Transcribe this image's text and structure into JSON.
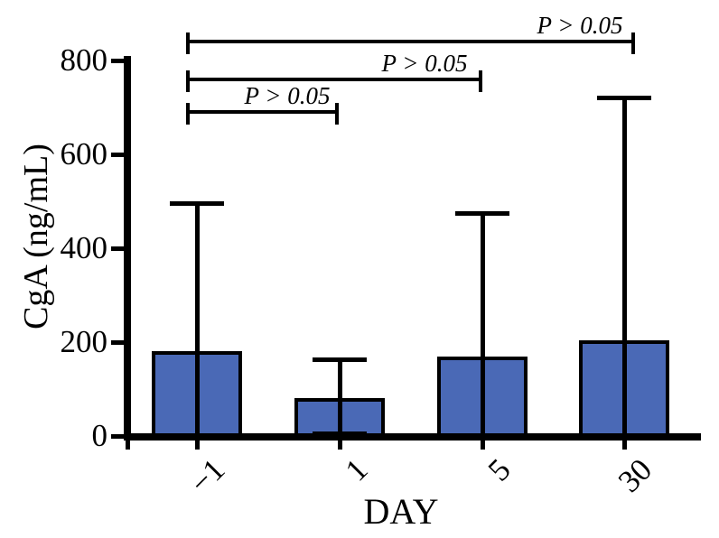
{
  "figure": {
    "background_color": "#ffffff",
    "axis_color": "#000000"
  },
  "chart_data": {
    "type": "bar",
    "title": "",
    "xlabel": "DAY",
    "ylabel": "CgA (ng/mL)",
    "categories": [
      "−1",
      "1",
      "5",
      "30"
    ],
    "values": [
      180,
      80,
      170,
      203
    ],
    "error_upper": [
      495,
      162,
      475,
      720
    ],
    "error_lower": [
      null,
      5,
      null,
      null
    ],
    "ylim": [
      0,
      800
    ],
    "yticks": [
      0,
      200,
      400,
      600,
      800
    ],
    "ytick_labels": [
      "0",
      "200",
      "400",
      "600",
      "800"
    ],
    "grid": false,
    "legend": "none",
    "bar_color": "#4a69b6",
    "error_bar_style": "mean_plus_sd_caps",
    "significance_brackets": [
      {
        "label": "P > 0.05",
        "from": "−1",
        "to": "30"
      },
      {
        "label": "P > 0.05",
        "from": "−1",
        "to": "5"
      },
      {
        "label": "P > 0.05",
        "from": "−1",
        "to": "1"
      }
    ]
  }
}
